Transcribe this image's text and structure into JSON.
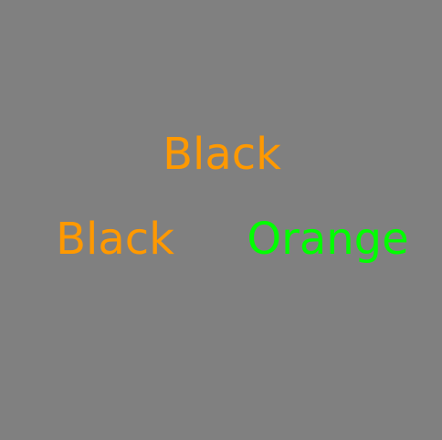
{
  "background_color": "#808080",
  "prompt": {
    "text": "Black",
    "color": "#FF9900"
  },
  "options": [
    {
      "text": "Black",
      "color": "#FF9900"
    },
    {
      "text": "Orange",
      "color": "#00FF00"
    }
  ]
}
